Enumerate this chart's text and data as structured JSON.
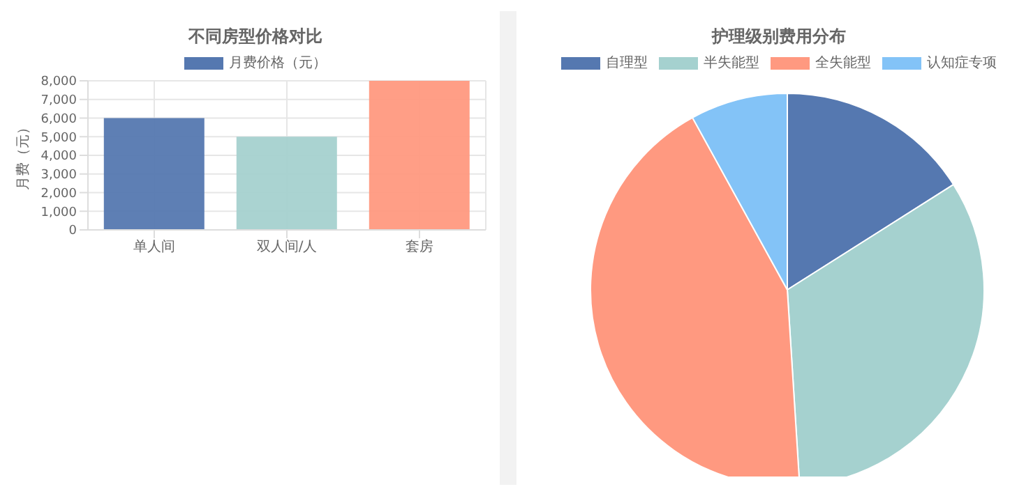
{
  "chart_data": [
    {
      "type": "bar",
      "title": "不同房型价格对比",
      "ylabel": "月费（元）",
      "categories": [
        "单人间",
        "双人间/人",
        "套房"
      ],
      "series": [
        {
          "name": "月费价格（元）",
          "color": "#5578b0",
          "colors": [
            "#5578b0",
            "#a5d1cf",
            "#ff9980"
          ],
          "values": [
            6000,
            5000,
            8000
          ]
        }
      ],
      "ylim": [
        0,
        8000
      ],
      "yticks": [
        {
          "value": 0,
          "label": "0"
        },
        {
          "value": 1000,
          "label": "1,000"
        },
        {
          "value": 2000,
          "label": "2,000"
        },
        {
          "value": 3000,
          "label": "3,000"
        },
        {
          "value": 4000,
          "label": "4,000"
        },
        {
          "value": 5000,
          "label": "5,000"
        },
        {
          "value": 6000,
          "label": "6,000"
        },
        {
          "value": 7000,
          "label": "7,000"
        },
        {
          "value": 8000,
          "label": "8,000"
        }
      ],
      "grid": true,
      "legend": "top"
    },
    {
      "type": "pie",
      "title": "护理级别费用分布",
      "categories": [
        "自理型",
        "半失能型",
        "全失能型",
        "认知症专项"
      ],
      "values": [
        16,
        33,
        43,
        8
      ],
      "colors": [
        "#5578b0",
        "#a5d1cf",
        "#ff9980",
        "#83c3f7"
      ],
      "legend": "top"
    }
  ]
}
